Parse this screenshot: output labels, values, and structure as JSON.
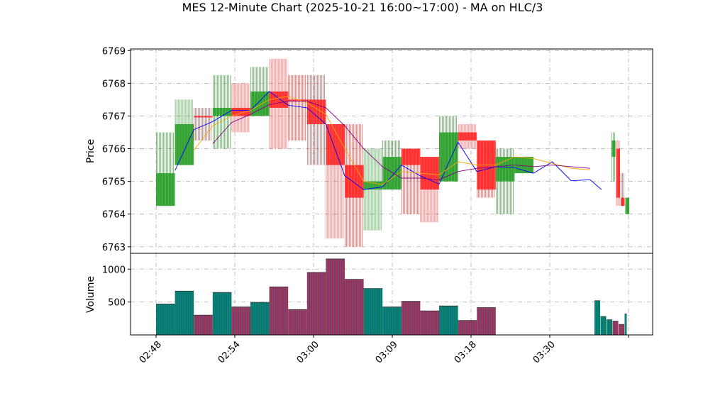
{
  "chart_data": [
    {
      "type": "ohlc",
      "title": "MES 12-Minute Chart (2025-10-21 16:00~17:00) - MA on HLC/3",
      "ylabel": "Price",
      "ylim": [
        6762.8,
        6769.05
      ],
      "yticks": [
        6763,
        6764,
        6765,
        6766,
        6767,
        6768,
        6769
      ],
      "grid": true,
      "candles": [
        {
          "open": 6764.25,
          "high": 6766.5,
          "low": 6764.25,
          "close": 6765.25,
          "up": true
        },
        {
          "open": 6765.5,
          "high": 6767.5,
          "low": 6765.5,
          "close": 6766.75,
          "up": true
        },
        {
          "open": 6767.0,
          "high": 6767.25,
          "low": 6766.25,
          "close": 6767.0,
          "up": false
        },
        {
          "open": 6767.0,
          "high": 6768.25,
          "low": 6766.0,
          "close": 6767.25,
          "up": true
        },
        {
          "open": 6767.25,
          "high": 6768.0,
          "low": 6766.5,
          "close": 6767.0,
          "up": false
        },
        {
          "open": 6767.0,
          "high": 6768.5,
          "low": 6767.0,
          "close": 6767.75,
          "up": true
        },
        {
          "open": 6767.75,
          "high": 6768.75,
          "low": 6766.0,
          "close": 6767.25,
          "up": false
        },
        {
          "open": 6767.5,
          "high": 6768.25,
          "low": 6766.25,
          "close": 6767.5,
          "up": false
        },
        {
          "open": 6767.5,
          "high": 6768.25,
          "low": 6765.5,
          "close": 6766.75,
          "up": false
        },
        {
          "open": 6766.75,
          "high": 6766.75,
          "low": 6763.25,
          "close": 6765.5,
          "up": false
        },
        {
          "open": 6765.5,
          "high": 6766.75,
          "low": 6763.0,
          "close": 6764.5,
          "up": false
        },
        {
          "open": 6764.75,
          "high": 6766.0,
          "low": 6763.5,
          "close": 6765.0,
          "up": true
        },
        {
          "open": 6764.75,
          "high": 6766.25,
          "low": 6764.75,
          "close": 6765.75,
          "up": true
        },
        {
          "open": 6766.0,
          "high": 6766.0,
          "low": 6764.0,
          "close": 6765.5,
          "up": false
        },
        {
          "open": 6765.75,
          "high": 6765.75,
          "low": 6763.75,
          "close": 6764.75,
          "up": false
        },
        {
          "open": 6765.0,
          "high": 6767.0,
          "low": 6765.0,
          "close": 6766.5,
          "up": true
        },
        {
          "open": 6766.5,
          "high": 6766.75,
          "low": 6766.0,
          "close": 6766.25,
          "up": false
        },
        {
          "open": 6766.25,
          "high": 6766.25,
          "low": 6764.5,
          "close": 6764.75,
          "up": false
        },
        {
          "open": 6765.0,
          "high": 6766.0,
          "low": 6764.0,
          "close": 6765.75,
          "up": true
        },
        {
          "open": 6765.75,
          "high": 6765.75,
          "low": 6765.25,
          "close": 6765.25,
          "up": true
        },
        {
          "open": 6765.75,
          "high": 6766.5,
          "low": 6765.0,
          "close": 6766.25,
          "up": true
        },
        {
          "open": 6766.0,
          "high": 6766.25,
          "low": 6764.25,
          "close": 6764.5,
          "up": false
        },
        {
          "open": 6764.5,
          "high": 6765.25,
          "low": 6764.25,
          "close": 6764.25,
          "up": false
        },
        {
          "open": 6764.5,
          "high": 6764.5,
          "low": 6764.0,
          "close": 6764.0,
          "up": true
        }
      ],
      "ma_series": [
        {
          "color": "#0000ff",
          "points": [
            [
              1,
              6765.33
            ],
            [
              2,
              6766.58
            ],
            [
              3,
              6766.83
            ],
            [
              4,
              6767.17
            ],
            [
              5,
              6767.17
            ],
            [
              6,
              6767.75
            ],
            [
              7,
              6767.33
            ],
            [
              8,
              6767.25
            ],
            [
              9,
              6766.75
            ],
            [
              10,
              6765.17
            ],
            [
              11,
              6764.75
            ],
            [
              12,
              6764.83
            ],
            [
              13,
              6765.5
            ],
            [
              14,
              6765.17
            ],
            [
              15,
              6764.92
            ],
            [
              16,
              6766.2
            ],
            [
              17,
              6765.3
            ],
            [
              18,
              6765.45
            ],
            [
              19,
              6765.42
            ],
            [
              20,
              6765.25
            ],
            [
              21,
              6765.6
            ],
            [
              22,
              6765.02
            ],
            [
              23,
              6765.05
            ],
            [
              23.6,
              6764.75
            ]
          ]
        },
        {
          "color": "#ffa500",
          "points": [
            [
              2,
              6765.95
            ],
            [
              3,
              6766.7
            ],
            [
              4,
              6767.0
            ],
            [
              5,
              6767.17
            ],
            [
              6,
              6767.5
            ],
            [
              7,
              6767.6
            ],
            [
              8,
              6767.4
            ],
            [
              9,
              6767.05
            ],
            [
              10,
              6766.0
            ],
            [
              11,
              6765.0
            ],
            [
              12,
              6764.9
            ],
            [
              13,
              6765.3
            ],
            [
              14,
              6765.25
            ],
            [
              15,
              6765.2
            ],
            [
              16,
              6765.6
            ],
            [
              17,
              6765.5
            ],
            [
              18,
              6765.5
            ],
            [
              19,
              6765.75
            ],
            [
              20,
              6765.7
            ],
            [
              21,
              6765.55
            ],
            [
              22,
              6765.4
            ],
            [
              23,
              6765.35
            ]
          ]
        },
        {
          "color": "#800080",
          "points": [
            [
              3,
              6766.15
            ],
            [
              4,
              6766.8
            ],
            [
              5,
              6767.05
            ],
            [
              6,
              6767.35
            ],
            [
              7,
              6767.45
            ],
            [
              8,
              6767.45
            ],
            [
              9,
              6767.25
            ],
            [
              10,
              6766.7
            ],
            [
              11,
              6766.0
            ],
            [
              12,
              6765.45
            ],
            [
              13,
              6765.1
            ],
            [
              14,
              6765.1
            ],
            [
              15,
              6765.05
            ],
            [
              16,
              6765.3
            ],
            [
              17,
              6765.4
            ],
            [
              18,
              6765.45
            ],
            [
              19,
              6765.5
            ],
            [
              20,
              6765.45
            ],
            [
              21,
              6765.5
            ],
            [
              22,
              6765.45
            ],
            [
              23,
              6765.4
            ]
          ]
        }
      ]
    },
    {
      "type": "bar",
      "ylabel": "Volume",
      "ylim": [
        0,
        1240
      ],
      "yticks": [
        500,
        1000
      ],
      "grid": true,
      "bars": [
        {
          "value": 470,
          "up": true
        },
        {
          "value": 665,
          "up": true
        },
        {
          "value": 300,
          "up": false
        },
        {
          "value": 645,
          "up": true
        },
        {
          "value": 425,
          "up": false
        },
        {
          "value": 495,
          "up": true
        },
        {
          "value": 730,
          "up": false
        },
        {
          "value": 385,
          "up": false
        },
        {
          "value": 950,
          "up": false
        },
        {
          "value": 1155,
          "up": false
        },
        {
          "value": 845,
          "up": false
        },
        {
          "value": 705,
          "up": true
        },
        {
          "value": 425,
          "up": true
        },
        {
          "value": 510,
          "up": false
        },
        {
          "value": 365,
          "up": false
        },
        {
          "value": 440,
          "up": true
        },
        {
          "value": 220,
          "up": false
        },
        {
          "value": 415,
          "up": false
        },
        {
          "value": 520,
          "up": true
        },
        {
          "value": 280,
          "up": true
        },
        {
          "value": 230,
          "up": true
        },
        {
          "value": 210,
          "up": false
        },
        {
          "value": 160,
          "up": false
        },
        {
          "value": 320,
          "up": true
        }
      ],
      "x_tick_labels": [
        "02:48",
        "02:54",
        "03:00",
        "03:09",
        "03:18",
        "03:30"
      ]
    }
  ],
  "colors": {
    "up": "#2ca02c",
    "down": "#ff2a2a",
    "up_wick": "#3a9a3a",
    "down_wick": "#e04444",
    "volume_up": "#008060",
    "volume_down": "#a0304a",
    "volume_stripe": "#3a6fd0"
  }
}
